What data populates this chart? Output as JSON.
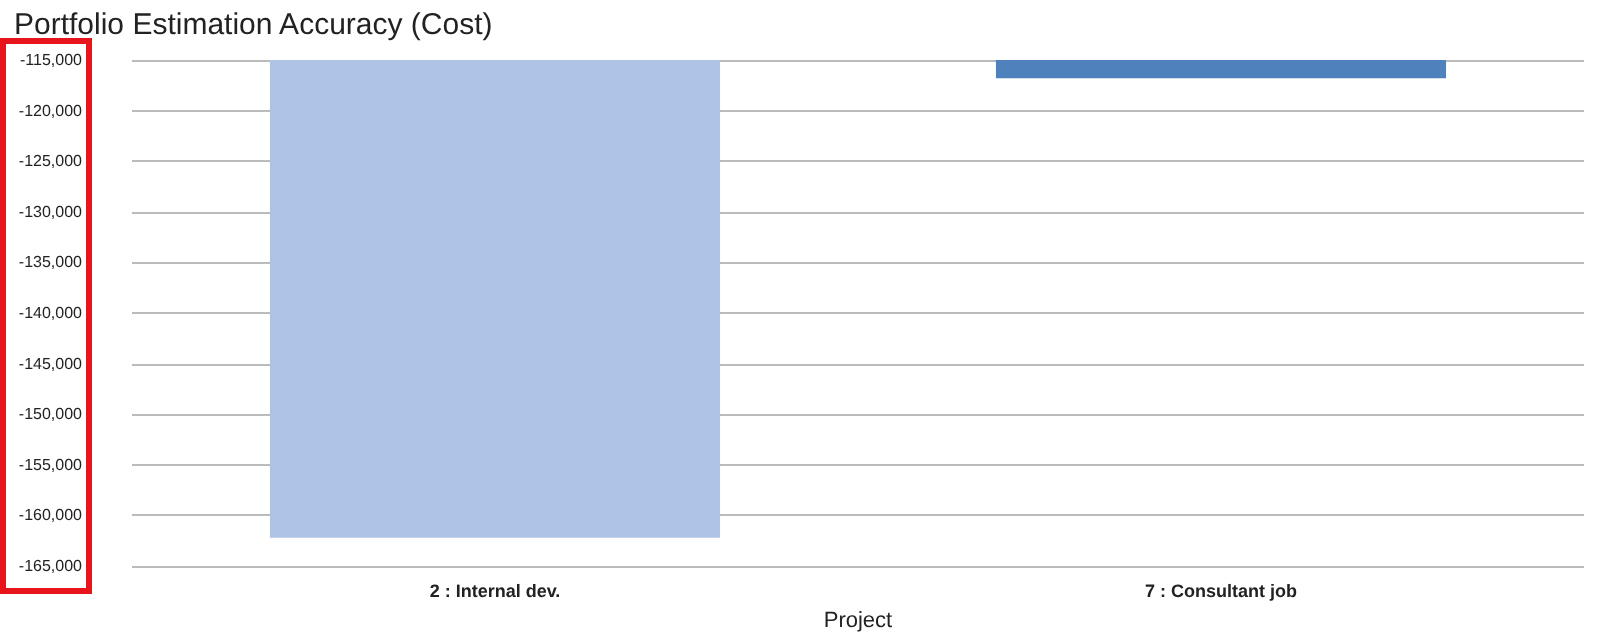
{
  "chart_data": {
    "type": "bar",
    "title": "Portfolio Estimation Accuracy (Cost)",
    "xlabel": "Project",
    "categories": [
      "2 : Internal dev.",
      "7 : Consultant job"
    ],
    "colors": [
      "#aec3e6",
      "#4f81bd"
    ],
    "values": [
      -162200,
      -116800
    ],
    "ylim": [
      -165000,
      -115000
    ],
    "yticks": [
      {
        "value": -165000,
        "label": "-165,000"
      },
      {
        "value": -160000,
        "label": "-160,000"
      },
      {
        "value": -155000,
        "label": "-155,000"
      },
      {
        "value": -150000,
        "label": "-150,000"
      },
      {
        "value": -145000,
        "label": "-145,000"
      },
      {
        "value": -140000,
        "label": "-140,000"
      },
      {
        "value": -135000,
        "label": "-135,000"
      },
      {
        "value": -130000,
        "label": "-130,000"
      },
      {
        "value": -125000,
        "label": "-125,000"
      },
      {
        "value": -120000,
        "label": "-120,000"
      },
      {
        "value": -115000,
        "label": "-115,000"
      }
    ],
    "grid": "y"
  }
}
